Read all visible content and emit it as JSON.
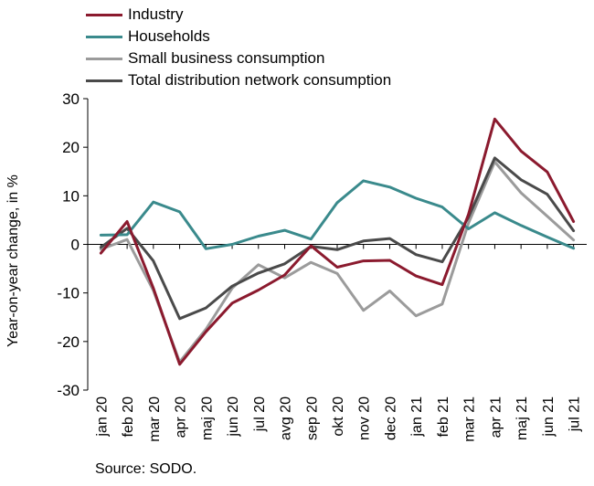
{
  "chart_data": {
    "type": "line",
    "xlabel": "",
    "ylabel": "Year-on-year change, in %",
    "ylim": [
      -30,
      30
    ],
    "yticks": [
      30,
      20,
      10,
      0,
      -10,
      -20,
      -30
    ],
    "grid": false,
    "legend_position": "top-left",
    "categories": [
      "jan 20",
      "feb 20",
      "mar 20",
      "apr 20",
      "maj 20",
      "jun 20",
      "jul 20",
      "avg 20",
      "sep 20",
      "okt 20",
      "nov 20",
      "dec 20",
      "jan 21",
      "feb 21",
      "mar 21",
      "apr 21",
      "maj 21",
      "jun 21",
      "jul 21"
    ],
    "series": [
      {
        "name": "Industry",
        "color": "#8b1a2e",
        "values": [
          -1.8,
          4.7,
          -9.0,
          -24.7,
          -18.0,
          -12.1,
          -9.4,
          -6.3,
          -0.3,
          -4.7,
          -3.4,
          -3.3,
          -6.5,
          -8.3,
          6.2,
          25.8,
          19.2,
          14.9,
          4.7
        ]
      },
      {
        "name": "Households",
        "color": "#3a8a8c",
        "values": [
          1.9,
          2.0,
          8.7,
          6.7,
          -0.9,
          0.0,
          1.7,
          2.9,
          1.1,
          8.6,
          13.1,
          11.8,
          9.5,
          7.7,
          3.2,
          6.5,
          3.9,
          1.5,
          -0.8
        ]
      },
      {
        "name": "Small business consumption",
        "color": "#9b9b9b",
        "values": [
          -1.0,
          1.0,
          -9.5,
          -24.2,
          -17.5,
          -9.0,
          -4.2,
          -6.9,
          -3.7,
          -6.0,
          -13.6,
          -9.6,
          -14.7,
          -12.3,
          4.4,
          17.0,
          10.6,
          5.8,
          0.9
        ]
      },
      {
        "name": "Total distribution network consumption",
        "color": "#4a4a4a",
        "values": [
          -0.6,
          3.3,
          -3.4,
          -15.3,
          -13.1,
          -8.6,
          -5.9,
          -4.0,
          -0.4,
          -1.1,
          0.7,
          1.2,
          -2.1,
          -3.6,
          5.6,
          17.8,
          13.3,
          10.3,
          2.8
        ]
      }
    ],
    "source": "Source: SODO."
  }
}
